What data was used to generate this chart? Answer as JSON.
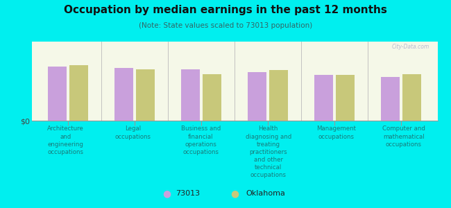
{
  "title": "Occupation by median earnings in the past 12 months",
  "subtitle": "(Note: State values scaled to 73013 population)",
  "background_outer": "#00efef",
  "background_inner_top": "#f5f8e8",
  "background_inner_bottom": "#e8f0d0",
  "categories": [
    "Architecture\nand\nengineering\noccupations",
    "Legal\noccupations",
    "Business and\nfinancial\noperations\noccupations",
    "Health\ndiagnosing and\ntreating\npractitioners\nand other\ntechnical\noccupations",
    "Management\noccupations",
    "Computer and\nmathematical\noccupations"
  ],
  "values_73013": [
    0.55,
    0.53,
    0.52,
    0.49,
    0.46,
    0.44
  ],
  "values_oklahoma": [
    0.56,
    0.52,
    0.47,
    0.51,
    0.46,
    0.47
  ],
  "color_73013": "#c9a0dc",
  "color_oklahoma": "#c8c87a",
  "ylabel": "$0",
  "legend_73013": "73013",
  "legend_oklahoma": "Oklahoma",
  "watermark": "City-Data.com"
}
